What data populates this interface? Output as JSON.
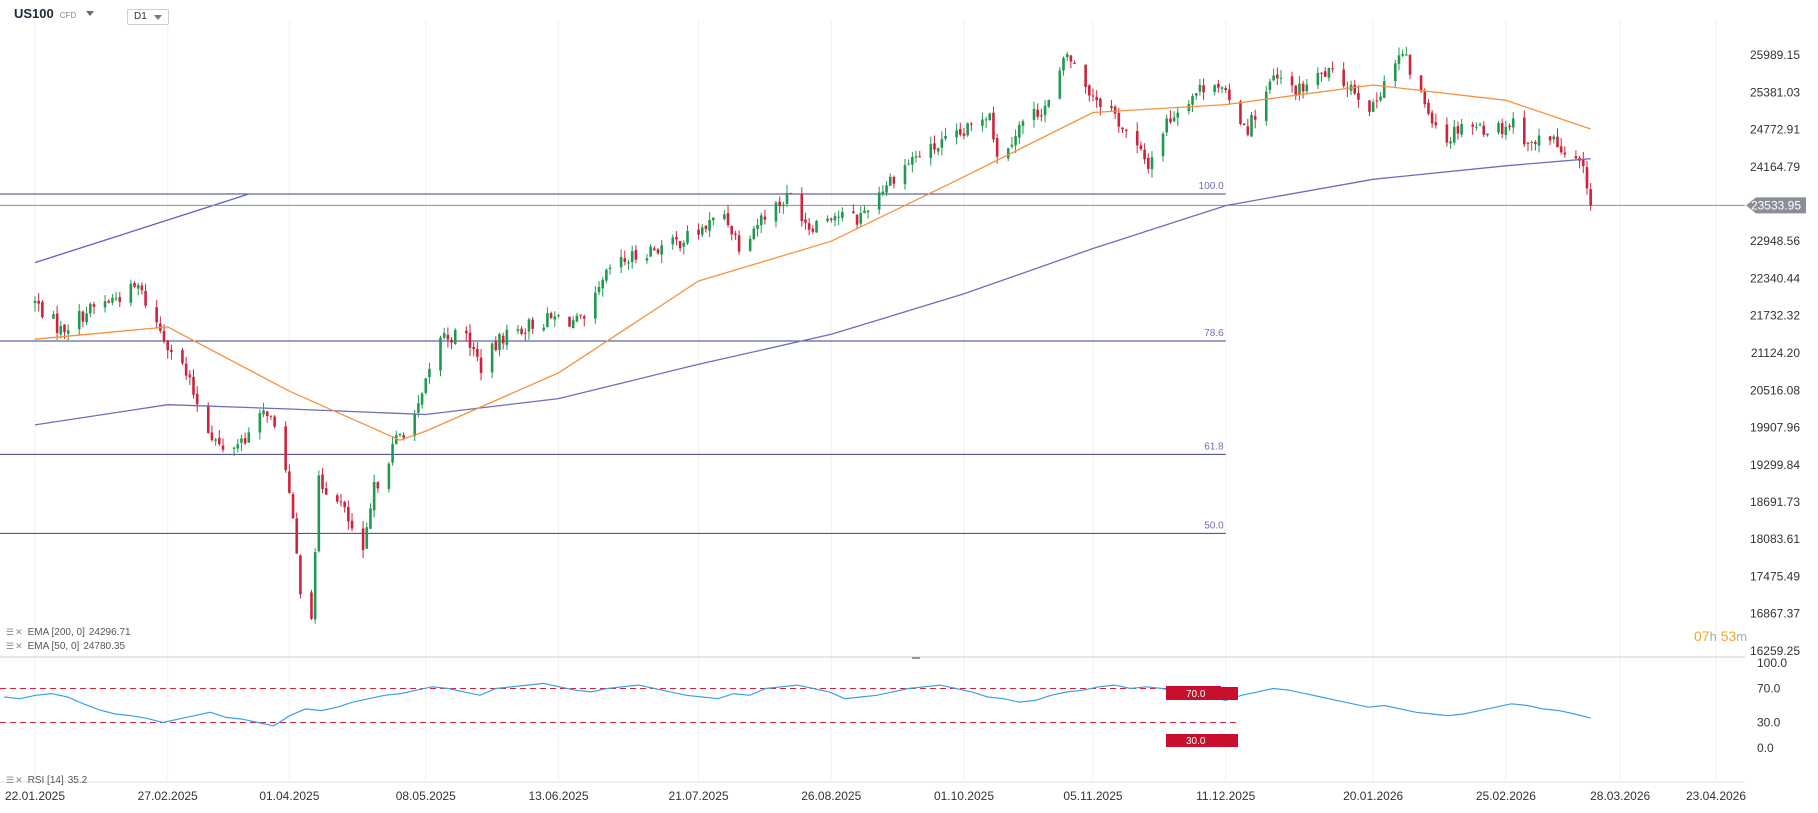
{
  "header": {
    "symbol": "US100",
    "instrument_type": "CFD",
    "timeframe": "D1"
  },
  "indicators": {
    "ema200": {
      "label": "EMA [200, 0]",
      "value": "24296.71",
      "color": "#6b6fb8"
    },
    "ema50": {
      "label": "EMA [50, 0]",
      "value": "24780.35",
      "color": "#f5923e"
    },
    "rsi": {
      "label": "RSI [14]",
      "value": "35.2",
      "color": "#3ba0e6"
    }
  },
  "countdown": {
    "hours": "07",
    "h": "h",
    "minutes": "53",
    "m": "m"
  },
  "chart_data": [
    {
      "type": "candlestick",
      "title": "US100",
      "price_axis_labels": [
        "25989.15",
        "25381.03",
        "24772.91",
        "24164.79",
        "22948.56",
        "22340.44",
        "21732.32",
        "21124.20",
        "20516.08",
        "19907.96",
        "19299.84",
        "18691.73",
        "18083.61",
        "17475.49",
        "16867.37",
        "16259.25"
      ],
      "current_price": "23533.95",
      "date_axis_labels": [
        "22.01.2025",
        "27.02.2025",
        "01.04.2025",
        "08.05.2025",
        "13.06.2025",
        "21.07.2025",
        "26.08.2025",
        "01.10.2025",
        "05.11.2025",
        "11.12.2025",
        "20.01.2026",
        "25.02.2026",
        "28.03.2026",
        "23.04.2026"
      ],
      "ylim": [
        16259.25,
        26300
      ],
      "colors": {
        "up": "#1f9a4e",
        "down": "#d0233b"
      },
      "fibonacci_levels": [
        {
          "label": "100.0",
          "price": 23720
        },
        {
          "label": "78.6",
          "price": 21320
        },
        {
          "label": "61.8",
          "price": 19470
        },
        {
          "label": "50.0",
          "price": 18180
        }
      ],
      "current_price_line": 23533.95,
      "trendline": {
        "from": [
          "22.01.2025",
          22600
        ],
        "to": [
          "21.03.2025",
          23720
        ]
      },
      "price_path": [
        [
          "22.01.2025",
          21950
        ],
        [
          "29.01.2025",
          21500
        ],
        [
          "05.02.2025",
          21800
        ],
        [
          "12.02.2025",
          22000
        ],
        [
          "19.02.2025",
          22200
        ],
        [
          "24.02.2025",
          21600
        ],
        [
          "03.03.2025",
          20900
        ],
        [
          "10.03.2025",
          19900
        ],
        [
          "14.03.2025",
          19500
        ],
        [
          "21.03.2025",
          19800
        ],
        [
          "26.03.2025",
          20200
        ],
        [
          "31.03.2025",
          19300
        ],
        [
          "04.04.2025",
          17300
        ],
        [
          "07.04.2025",
          16900
        ],
        [
          "09.04.2025",
          19000
        ],
        [
          "14.04.2025",
          18800
        ],
        [
          "21.04.2025",
          17800
        ],
        [
          "24.04.2025",
          18900
        ],
        [
          "30.04.2025",
          19700
        ],
        [
          "06.05.2025",
          20200
        ],
        [
          "12.05.2025",
          21400
        ],
        [
          "19.05.2025",
          21400
        ],
        [
          "23.05.2025",
          20900
        ],
        [
          "29.05.2025",
          21400
        ],
        [
          "06.06.2025",
          21600
        ],
        [
          "13.06.2025",
          21700
        ],
        [
          "20.06.2025",
          21600
        ],
        [
          "27.06.2025",
          22500
        ],
        [
          "07.07.2025",
          22800
        ],
        [
          "14.07.2025",
          22900
        ],
        [
          "21.07.2025",
          23100
        ],
        [
          "28.07.2025",
          23400
        ],
        [
          "01.08.2025",
          22900
        ],
        [
          "08.08.2025",
          23400
        ],
        [
          "15.08.2025",
          23700
        ],
        [
          "20.08.2025",
          23200
        ],
        [
          "26.08.2025",
          23400
        ],
        [
          "02.09.2025",
          23300
        ],
        [
          "10.09.2025",
          23900
        ],
        [
          "17.09.2025",
          24300
        ],
        [
          "24.09.2025",
          24500
        ],
        [
          "01.10.2025",
          24700
        ],
        [
          "08.10.2025",
          25100
        ],
        [
          "10.10.2025",
          24300
        ],
        [
          "17.10.2025",
          24900
        ],
        [
          "24.10.2025",
          25200
        ],
        [
          "29.10.2025",
          26000
        ],
        [
          "04.11.2025",
          25400
        ],
        [
          "10.11.2025",
          25100
        ],
        [
          "14.11.2025",
          24700
        ],
        [
          "20.11.2025",
          24200
        ],
        [
          "25.11.2025",
          24900
        ],
        [
          "01.12.2025",
          25300
        ],
        [
          "08.12.2025",
          25600
        ],
        [
          "12.12.2025",
          25200
        ],
        [
          "17.12.2025",
          24800
        ],
        [
          "24.12.2025",
          25600
        ],
        [
          "31.12.2025",
          25400
        ],
        [
          "07.01.2026",
          25700
        ],
        [
          "14.01.2026",
          25500
        ],
        [
          "20.01.2026",
          25100
        ],
        [
          "23.01.2026",
          25600
        ],
        [
          "28.01.2026",
          26000
        ],
        [
          "03.02.2026",
          25200
        ],
        [
          "09.02.2026",
          24600
        ],
        [
          "13.02.2026",
          24900
        ],
        [
          "18.02.2026",
          24800
        ],
        [
          "24.02.2026",
          24800
        ],
        [
          "27.02.2026",
          24900
        ],
        [
          "04.03.2026",
          24500
        ],
        [
          "09.03.2026",
          24700
        ],
        [
          "13.03.2026",
          24300
        ],
        [
          "17.03.2026",
          24200
        ],
        [
          "19.03.2026",
          23900
        ],
        [
          "20.03.2026",
          23533.95
        ]
      ],
      "ema200_path": [
        [
          "22.01.2025",
          19950
        ],
        [
          "27.02.2025",
          20280
        ],
        [
          "01.04.2025",
          20210
        ],
        [
          "08.05.2025",
          20120
        ],
        [
          "13.06.2025",
          20380
        ],
        [
          "21.07.2025",
          20940
        ],
        [
          "26.08.2025",
          21430
        ],
        [
          "01.10.2025",
          22090
        ],
        [
          "05.11.2025",
          22830
        ],
        [
          "11.12.2025",
          23530
        ],
        [
          "20.01.2026",
          23960
        ],
        [
          "25.02.2026",
          24180
        ],
        [
          "20.03.2026",
          24296.71
        ]
      ],
      "ema50_path": [
        [
          "22.01.2025",
          21350
        ],
        [
          "27.02.2025",
          21550
        ],
        [
          "01.04.2025",
          20500
        ],
        [
          "01.05.2025",
          19700
        ],
        [
          "08.05.2025",
          19850
        ],
        [
          "13.06.2025",
          20800
        ],
        [
          "21.07.2025",
          22300
        ],
        [
          "26.08.2025",
          22950
        ],
        [
          "01.10.2025",
          24000
        ],
        [
          "05.11.2025",
          25050
        ],
        [
          "11.12.2025",
          25180
        ],
        [
          "20.01.2026",
          25500
        ],
        [
          "25.02.2026",
          25250
        ],
        [
          "20.03.2026",
          24780.35
        ]
      ]
    },
    {
      "type": "line",
      "title": "RSI [14]",
      "y_axis_labels": [
        "100.0",
        "70.0",
        "30.0",
        "0.0"
      ],
      "ylim": [
        0,
        100
      ],
      "levels": [
        {
          "label": "70.0",
          "value": 70
        },
        {
          "label": "30.0",
          "value": 30
        }
      ],
      "series": [
        {
          "name": "RSI [14]",
          "values": [
            60,
            58,
            62,
            64,
            60,
            52,
            45,
            40,
            38,
            35,
            30,
            34,
            38,
            42,
            36,
            34,
            30,
            26,
            38,
            46,
            44,
            48,
            54,
            58,
            62,
            64,
            68,
            72,
            70,
            66,
            62,
            70,
            72,
            74,
            76,
            72,
            68,
            66,
            70,
            72,
            74,
            70,
            66,
            62,
            60,
            58,
            64,
            62,
            70,
            72,
            74,
            70,
            66,
            58,
            60,
            62,
            66,
            70,
            72,
            74,
            70,
            66,
            60,
            58,
            54,
            56,
            62,
            66,
            68,
            72,
            74,
            70,
            72,
            70,
            66,
            64,
            60,
            56,
            62,
            66,
            70,
            68,
            64,
            60,
            56,
            52,
            48,
            50,
            46,
            42,
            40,
            38,
            40,
            44,
            48,
            52,
            50,
            46,
            44,
            40,
            35.2
          ]
        }
      ]
    }
  ]
}
